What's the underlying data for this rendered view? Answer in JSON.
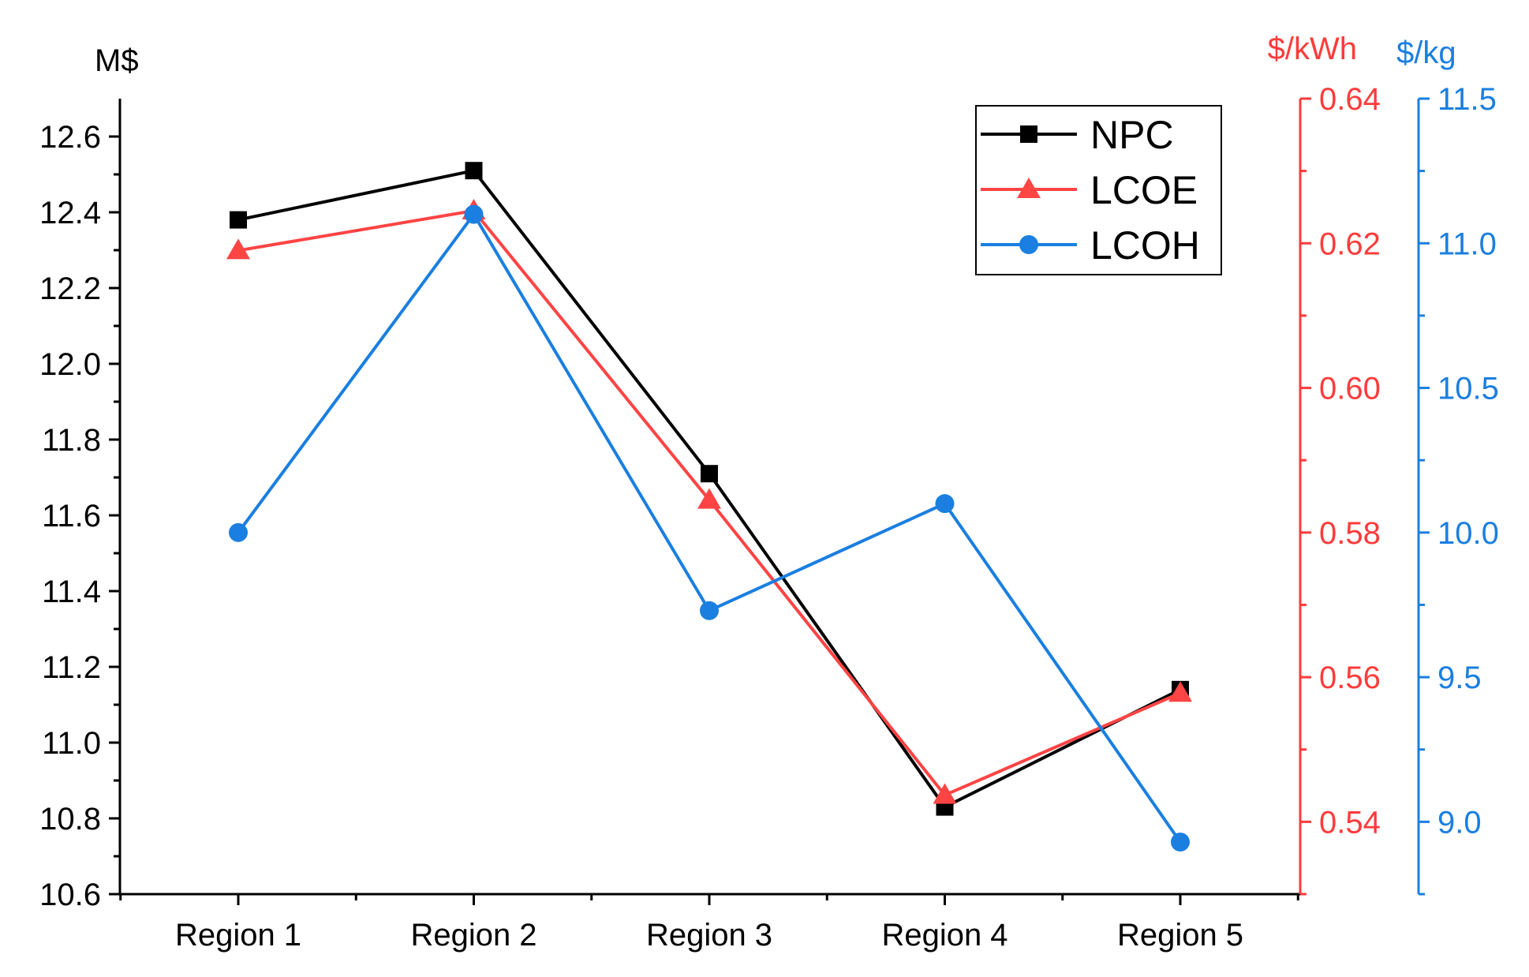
{
  "chart_data": {
    "type": "line",
    "title": "",
    "xlabel": "",
    "categories": [
      "Region 1",
      "Region 2",
      "Region 3",
      "Region 4",
      "Region 5"
    ],
    "axes": {
      "left": {
        "unit": "M$",
        "ylim": [
          10.6,
          12.7
        ],
        "ticks": [
          10.6,
          10.8,
          11.0,
          11.2,
          11.4,
          11.6,
          11.8,
          12.0,
          12.2,
          12.4,
          12.6
        ],
        "tick_labels": [
          "10.6",
          "10.8",
          "11.0",
          "11.2",
          "11.4",
          "11.6",
          "11.8",
          "12.0",
          "12.2",
          "12.4",
          "12.6"
        ],
        "color": "#000000"
      },
      "right1": {
        "unit": "$/kWh",
        "ylim": [
          0.53,
          0.64
        ],
        "ticks": [
          0.54,
          0.56,
          0.58,
          0.6,
          0.62,
          0.64
        ],
        "tick_labels": [
          "0.54",
          "0.56",
          "0.58",
          "0.60",
          "0.62",
          "0.64"
        ],
        "color": "#ff3b3b"
      },
      "right2": {
        "unit": "$/kg",
        "ylim": [
          8.75,
          11.5
        ],
        "ticks": [
          9.0,
          9.5,
          10.0,
          10.5,
          11.0,
          11.5
        ],
        "tick_labels": [
          "9.0",
          "9.5",
          "10.0",
          "10.5",
          "11.0",
          "11.5"
        ],
        "color": "#1a7fe0"
      }
    },
    "series": [
      {
        "name": "NPC",
        "axis": "left",
        "color": "#000000",
        "marker": "square",
        "values": [
          12.38,
          12.51,
          11.71,
          10.83,
          11.14
        ]
      },
      {
        "name": "LCOE",
        "axis": "right1",
        "color": "#ff4444",
        "marker": "triangle",
        "values": [
          0.619,
          0.6245,
          0.5845,
          0.5437,
          0.5578
        ]
      },
      {
        "name": "LCOH",
        "axis": "right2",
        "color": "#1a7fe0",
        "marker": "circle",
        "values": [
          10.0,
          11.1,
          9.73,
          10.1,
          8.93
        ]
      }
    ],
    "legend": {
      "position": "top-right",
      "entries": [
        "NPC",
        "LCOE",
        "LCOH"
      ]
    },
    "grid": false
  }
}
